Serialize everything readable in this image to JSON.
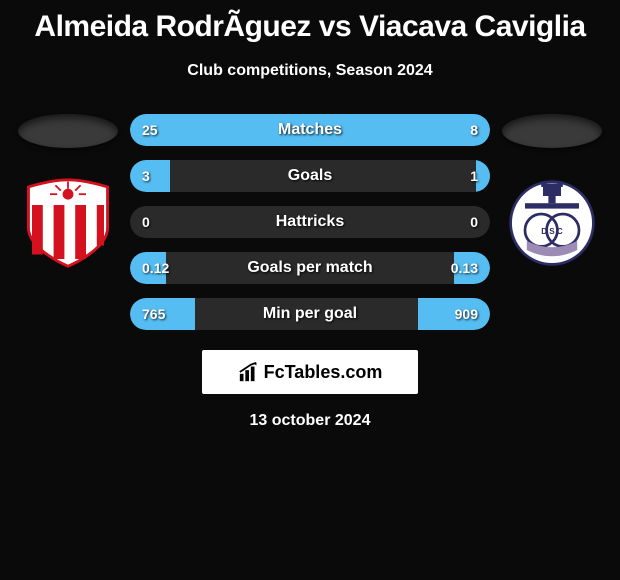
{
  "title": "Almeida RodrÃ­guez vs Viacava Caviglia",
  "subtitle": "Club competitions, Season 2024",
  "date": "13 october 2024",
  "brand": {
    "text": "FcTables.com",
    "icon_color": "#000000"
  },
  "colors": {
    "left_fill": "#55bdf2",
    "right_fill": "#55bdf2",
    "bar_bg": "#2a2a2a",
    "bg": "#0a0a0a",
    "text": "#ffffff"
  },
  "left_team": {
    "crest_primary": "#d4111e",
    "crest_secondary": "#ffffff"
  },
  "right_team": {
    "crest_primary": "#2d2c64",
    "crest_secondary": "#ffffff",
    "crest_accent": "#9b8bb5"
  },
  "stats": [
    {
      "label": "Matches",
      "left_val": "25",
      "right_val": "8",
      "left_pct": 75,
      "right_pct": 25
    },
    {
      "label": "Goals",
      "left_val": "3",
      "right_val": "1",
      "left_pct": 11,
      "right_pct": 4
    },
    {
      "label": "Hattricks",
      "left_val": "0",
      "right_val": "0",
      "left_pct": 0,
      "right_pct": 0
    },
    {
      "label": "Goals per match",
      "left_val": "0.12",
      "right_val": "0.13",
      "left_pct": 10,
      "right_pct": 10
    },
    {
      "label": "Min per goal",
      "left_val": "765",
      "right_val": "909",
      "left_pct": 18,
      "right_pct": 20
    }
  ]
}
